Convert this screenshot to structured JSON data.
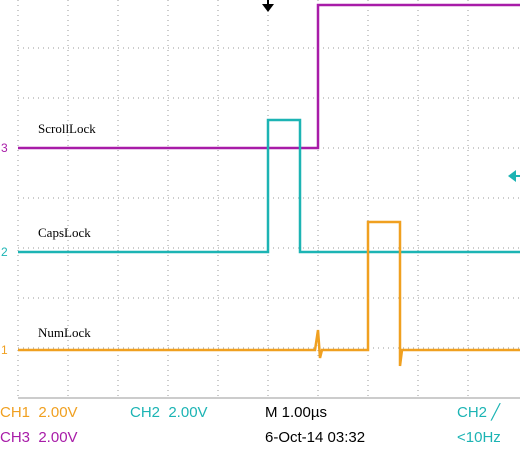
{
  "traces": [
    {
      "label": "ScrollLock",
      "marker": "3"
    },
    {
      "label": "CapsLock",
      "marker": "2"
    },
    {
      "label": "NumLock",
      "marker": "1"
    }
  ],
  "status": {
    "ch1": "CH1  2.00V",
    "ch2": "CH2  2.00V",
    "timebase": "M 1.00µs",
    "trigger_source": "CH2 ╱",
    "ch3": "CH3  2.00V",
    "datetime": "6-Oct-14 03:32",
    "trigger_freq": "<10Hz"
  }
}
